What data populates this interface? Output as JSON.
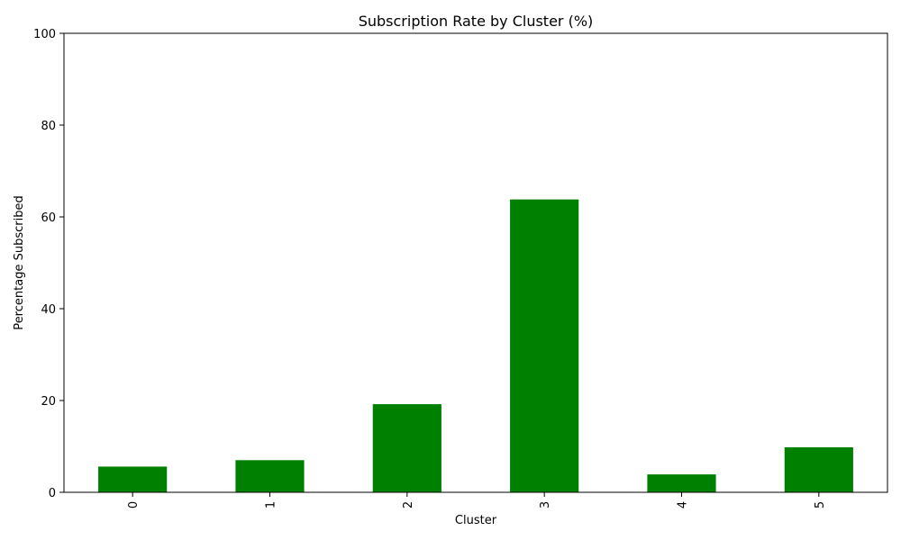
{
  "chart_data": {
    "type": "bar",
    "title": "Subscription Rate by Cluster (%)",
    "xlabel": "Cluster",
    "ylabel": "Percentage Subscribed",
    "categories": [
      "0",
      "1",
      "2",
      "3",
      "4",
      "5"
    ],
    "values": [
      5.6,
      7.0,
      19.2,
      63.8,
      3.9,
      9.8
    ],
    "ylim": [
      0,
      100
    ],
    "yticks": [
      "0",
      "20",
      "40",
      "60",
      "80",
      "100"
    ],
    "bar_color": "#008000",
    "grid": false,
    "legend": "none"
  }
}
